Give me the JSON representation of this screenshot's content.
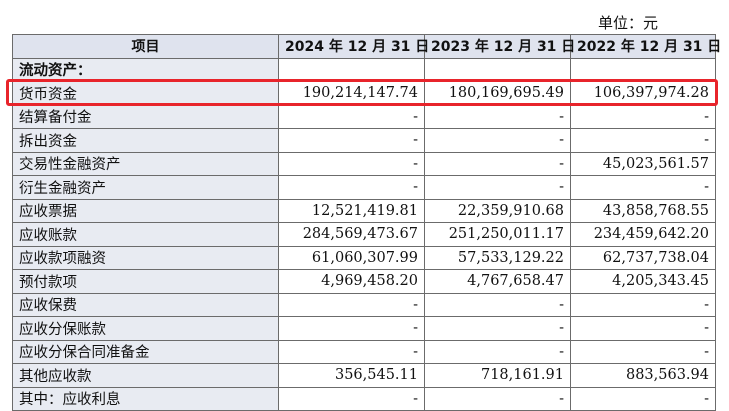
{
  "unit_label": "单位：元",
  "headers": [
    "项目",
    "2024 年 12 月 31 日",
    "2023 年 12 月 31 日",
    "2022 年 12 月 31 日"
  ],
  "section_title": "流动资产：",
  "rows": [
    {
      "label": "货币资金",
      "values": [
        "190,214,147.74",
        "180,169,695.49",
        "106,397,974.28"
      ]
    },
    {
      "label": "结算备付金",
      "values": [
        "-",
        "-",
        "-"
      ]
    },
    {
      "label": "拆出资金",
      "values": [
        "-",
        "-",
        "-"
      ]
    },
    {
      "label": "交易性金融资产",
      "values": [
        "-",
        "-",
        "45,023,561.57"
      ]
    },
    {
      "label": "衍生金融资产",
      "values": [
        "-",
        "-",
        "-"
      ]
    },
    {
      "label": "应收票据",
      "values": [
        "12,521,419.81",
        "22,359,910.68",
        "43,858,768.55"
      ]
    },
    {
      "label": "应收账款",
      "values": [
        "284,569,473.67",
        "251,250,011.17",
        "234,459,642.20"
      ]
    },
    {
      "label": "应收款项融资",
      "values": [
        "61,060,307.99",
        "57,533,129.22",
        "62,737,738.04"
      ]
    },
    {
      "label": "预付款项",
      "values": [
        "4,969,458.20",
        "4,767,658.47",
        "4,205,343.45"
      ]
    },
    {
      "label": "应收保费",
      "values": [
        "-",
        "-",
        "-"
      ]
    },
    {
      "label": "应收分保账款",
      "values": [
        "-",
        "-",
        "-"
      ]
    },
    {
      "label": "应收分保合同准备金",
      "values": [
        "-",
        "-",
        "-"
      ]
    },
    {
      "label": "其他应收款",
      "values": [
        "356,545.11",
        "718,161.91",
        "883,563.94"
      ]
    },
    {
      "label": "其中：应收利息",
      "values": [
        "-",
        "-",
        "-"
      ]
    }
  ],
  "highlight_color": "#e8242b"
}
